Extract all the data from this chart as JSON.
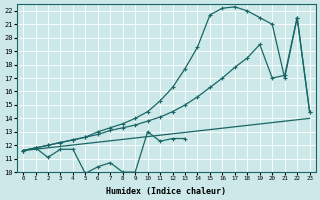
{
  "xlabel": "Humidex (Indice chaleur)",
  "bg_color": "#cce8e8",
  "grid_color": "#c4d8d8",
  "line_color": "#1a6666",
  "xlim": [
    -0.5,
    23.5
  ],
  "ylim": [
    10,
    22.5
  ],
  "xticks": [
    0,
    1,
    2,
    3,
    4,
    5,
    6,
    7,
    8,
    9,
    10,
    11,
    12,
    13,
    14,
    15,
    16,
    17,
    18,
    19,
    20,
    21,
    22,
    23
  ],
  "yticks": [
    10,
    11,
    12,
    13,
    14,
    15,
    16,
    17,
    18,
    19,
    20,
    21,
    22
  ],
  "line1": {
    "x": [
      0,
      1,
      2,
      3,
      4,
      5,
      6,
      7,
      8,
      9,
      10,
      11,
      12,
      13
    ],
    "y": [
      11.6,
      11.8,
      11.1,
      11.7,
      11.7,
      9.9,
      10.4,
      10.7,
      10.0,
      10.0,
      13.0,
      12.3,
      12.5,
      12.5
    ]
  },
  "line2": {
    "x": [
      0,
      23
    ],
    "y": [
      11.6,
      14.0
    ]
  },
  "line3": {
    "x": [
      0,
      1,
      2,
      3,
      4,
      5,
      6,
      7,
      8,
      9,
      10,
      11,
      12,
      13,
      14,
      15,
      16,
      17,
      18,
      19,
      20,
      21,
      22,
      23
    ],
    "y": [
      11.6,
      11.8,
      12.0,
      12.2,
      12.4,
      12.6,
      12.8,
      13.1,
      13.3,
      13.5,
      13.8,
      14.1,
      14.5,
      15.0,
      15.6,
      16.3,
      17.0,
      17.8,
      18.5,
      19.5,
      17.0,
      17.2,
      21.5,
      14.5
    ]
  },
  "line4": {
    "x": [
      0,
      1,
      2,
      3,
      4,
      5,
      6,
      7,
      8,
      9,
      10,
      11,
      12,
      13,
      14,
      15,
      16,
      17,
      18,
      19,
      20,
      21,
      22,
      23
    ],
    "y": [
      11.6,
      11.8,
      12.0,
      12.2,
      12.4,
      12.6,
      13.0,
      13.3,
      13.6,
      14.0,
      14.5,
      15.3,
      16.3,
      17.7,
      19.3,
      21.7,
      22.2,
      22.3,
      22.0,
      21.5,
      21.0,
      17.0,
      21.5,
      14.5
    ]
  }
}
